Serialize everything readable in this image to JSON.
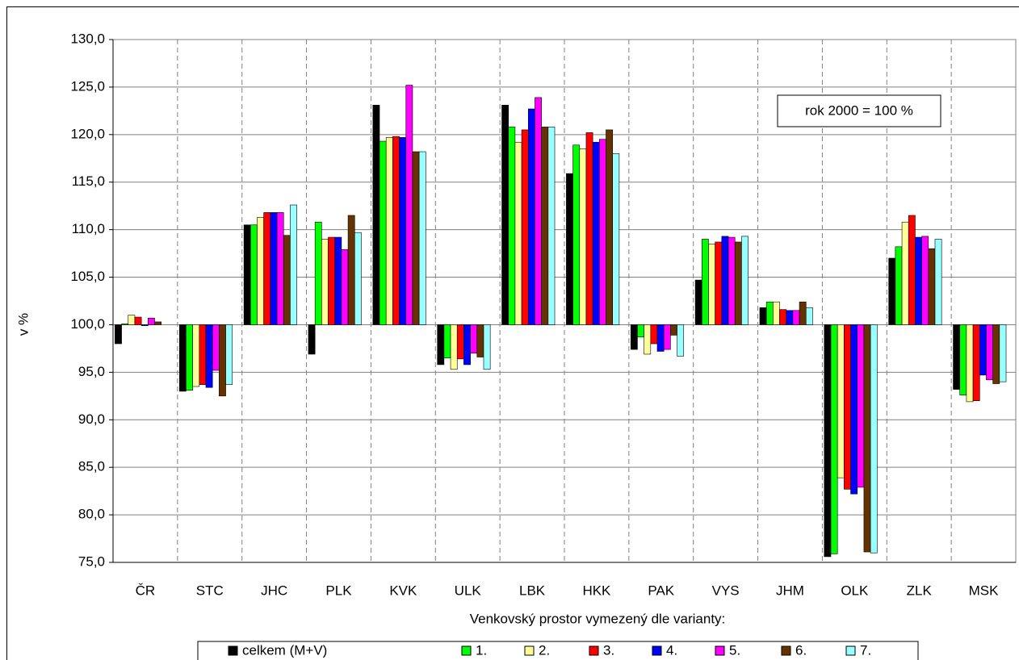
{
  "chart_data": {
    "type": "bar",
    "y_label": "v %",
    "x_label": "Venkovský prostor vymezený dle varianty:",
    "annotation": "rok 2000 = 100 %",
    "baseline": 100,
    "categories": [
      "ČR",
      "STC",
      "JHC",
      "PLK",
      "KVK",
      "ULK",
      "LBK",
      "HKK",
      "PAK",
      "VYS",
      "JHM",
      "OLK",
      "ZLK",
      "MSK"
    ],
    "series": [
      {
        "name": "celkem (M+V)",
        "color": "#000000",
        "values": [
          98.0,
          93.0,
          110.5,
          96.9,
          123.1,
          95.8,
          123.1,
          115.9,
          97.4,
          104.7,
          101.8,
          75.6,
          107.0,
          93.2
        ]
      },
      {
        "name": "1.",
        "color": "#00ff00",
        "values": [
          100.1,
          93.1,
          110.5,
          110.8,
          119.3,
          96.5,
          120.8,
          118.9,
          98.7,
          109.0,
          102.4,
          75.9,
          108.2,
          92.6
        ]
      },
      {
        "name": "2.",
        "color": "#ffff99",
        "values": [
          101.0,
          93.5,
          111.3,
          109.0,
          119.7,
          95.3,
          119.2,
          118.5,
          96.9,
          108.5,
          102.4,
          83.9,
          110.8,
          91.9
        ]
      },
      {
        "name": "3.",
        "color": "#ff0000",
        "values": [
          100.8,
          93.7,
          111.8,
          109.2,
          119.8,
          96.4,
          120.5,
          120.2,
          98.0,
          108.7,
          101.6,
          82.7,
          111.5,
          92.0
        ]
      },
      {
        "name": "4.",
        "color": "#0000ff",
        "values": [
          99.9,
          93.4,
          111.8,
          109.2,
          119.7,
          95.8,
          122.7,
          119.2,
          97.2,
          109.3,
          101.5,
          82.2,
          109.2,
          94.7
        ]
      },
      {
        "name": "5.",
        "color": "#ff00ff",
        "values": [
          100.7,
          95.2,
          111.8,
          107.9,
          125.2,
          97.0,
          123.9,
          119.5,
          97.4,
          109.2,
          101.5,
          82.9,
          109.3,
          94.2
        ]
      },
      {
        "name": "6.",
        "color": "#663300",
        "values": [
          100.3,
          92.5,
          109.4,
          111.5,
          118.2,
          96.6,
          120.8,
          120.5,
          98.9,
          108.7,
          102.4,
          76.1,
          108.0,
          93.8
        ]
      },
      {
        "name": "7.",
        "color": "#99ffff",
        "values": [
          100.0,
          93.7,
          112.6,
          109.7,
          118.2,
          95.3,
          120.8,
          118.0,
          96.7,
          109.3,
          101.8,
          76.0,
          109.0,
          94.0
        ]
      }
    ],
    "ylim": [
      75,
      130
    ],
    "yticks": [
      {
        "value": 75,
        "label": "75,0"
      },
      {
        "value": 80,
        "label": "80,0"
      },
      {
        "value": 85,
        "label": "85,0"
      },
      {
        "value": 90,
        "label": "90,0"
      },
      {
        "value": 95,
        "label": "95,0"
      },
      {
        "value": 100,
        "label": "100,0"
      },
      {
        "value": 105,
        "label": "105,0"
      },
      {
        "value": 110,
        "label": "110,0"
      },
      {
        "value": 115,
        "label": "115,0"
      },
      {
        "value": 120,
        "label": "120,0"
      },
      {
        "value": 125,
        "label": "125,0"
      },
      {
        "value": 130,
        "label": "130,0"
      }
    ],
    "grid": true,
    "legend": "bottom"
  }
}
